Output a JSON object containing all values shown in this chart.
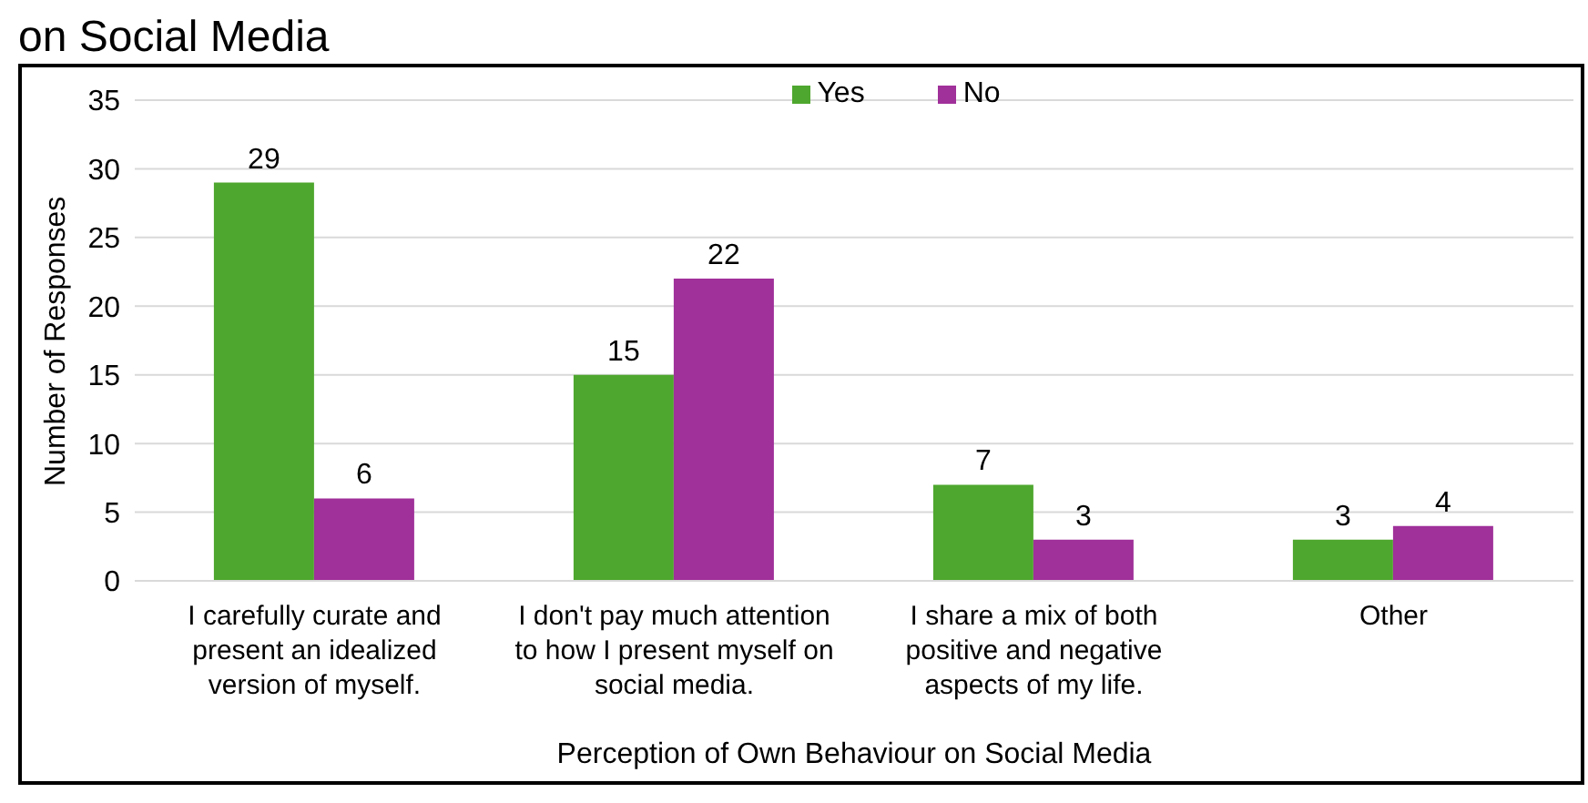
{
  "chart_data": {
    "type": "bar",
    "title": "on Social Media",
    "xlabel": "Perception of Own Behaviour on Social Media",
    "ylabel": "Number of Responses",
    "categories": [
      "I carefully curate and present an idealized version of myself.",
      "I don't pay much attention to how I present myself on social media.",
      "I share a mix of both positive and negative aspects of my life.",
      "Other"
    ],
    "series": [
      {
        "name": "Yes",
        "color": "#4ea72e",
        "values": [
          29,
          15,
          7,
          3
        ]
      },
      {
        "name": "No",
        "color": "#a0309a",
        "values": [
          6,
          22,
          3,
          4
        ]
      }
    ],
    "ylim": [
      0,
      35
    ],
    "yticks": [
      0,
      5,
      10,
      15,
      20,
      25,
      30,
      35
    ],
    "grid": "y",
    "legend": "top",
    "data_labels": true
  }
}
